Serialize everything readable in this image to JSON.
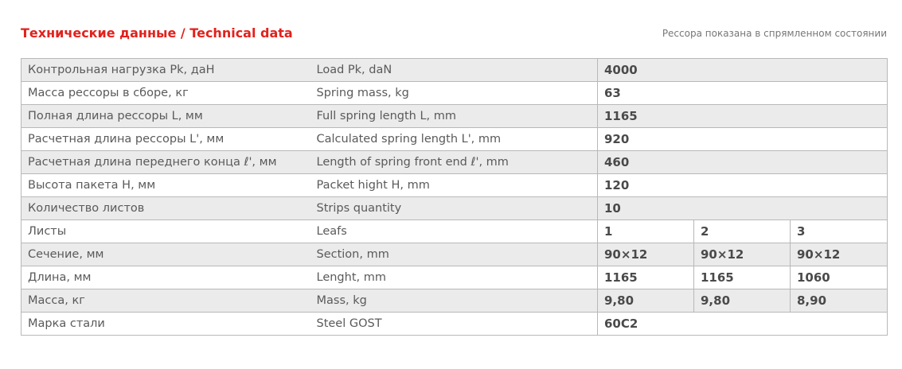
{
  "header": {
    "title": "Технические данные / Technical data",
    "note": "Рессора показана в спрямленном состоянии"
  },
  "rows": [
    {
      "ru": "Контрольная нагрузка Pk, даН",
      "en": "Load Pk, daN",
      "values": [
        "4000"
      ]
    },
    {
      "ru": "Масса рессоры в сборе, кг",
      "en": "Spring mass, kg",
      "values": [
        "63"
      ]
    },
    {
      "ru": "Полная длина рессоры L, мм",
      "en": "Full spring length L, mm",
      "values": [
        "1165"
      ]
    },
    {
      "ru": "Расчетная длина рессоры L', мм",
      "en": "Calculated spring length L', mm",
      "values": [
        "920"
      ]
    },
    {
      "ru": "Расчетная длина переднего конца ℓ', мм",
      "en": "Length of spring front end ℓ', mm",
      "values": [
        "460"
      ]
    },
    {
      "ru": "Высота пакета H, мм",
      "en": "Packet hight H, mm",
      "values": [
        "120"
      ]
    },
    {
      "ru": "Количество листов",
      "en": "Strips quantity",
      "values": [
        "10"
      ]
    },
    {
      "ru": "Листы",
      "en": "Leafs",
      "values": [
        "1",
        "2",
        "3"
      ]
    },
    {
      "ru": "Сечение, мм",
      "en": "Section, mm",
      "values": [
        "90×12",
        "90×12",
        "90×12"
      ]
    },
    {
      "ru": "Длина, мм",
      "en": "Lenght, mm",
      "values": [
        "1165",
        "1165",
        "1060"
      ]
    },
    {
      "ru": "Масса, кг",
      "en": "Mass, kg",
      "values": [
        "9,80",
        "9,80",
        "8,90"
      ]
    },
    {
      "ru": "Марка стали",
      "en": "Steel GOST",
      "values": [
        "60С2"
      ]
    }
  ]
}
